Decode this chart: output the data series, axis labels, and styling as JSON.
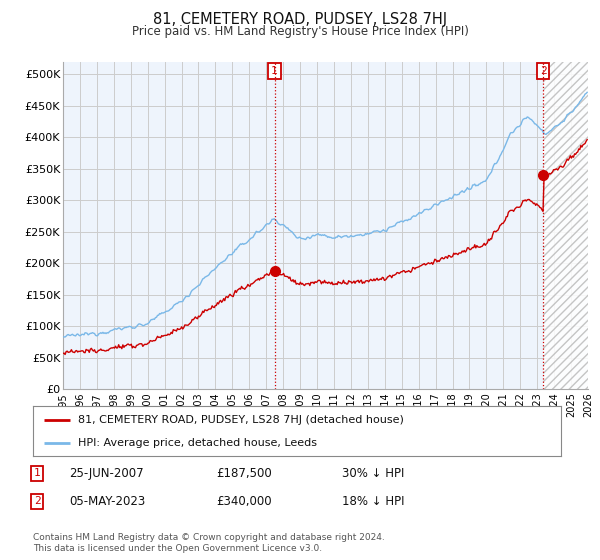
{
  "title": "81, CEMETERY ROAD, PUDSEY, LS28 7HJ",
  "subtitle": "Price paid vs. HM Land Registry's House Price Index (HPI)",
  "hpi_label": "HPI: Average price, detached house, Leeds",
  "property_label": "81, CEMETERY ROAD, PUDSEY, LS28 7HJ (detached house)",
  "hpi_color": "#7ab8e8",
  "property_color": "#cc0000",
  "background_color": "#ffffff",
  "grid_color": "#cccccc",
  "fill_color": "#ddeeff",
  "ylim": [
    0,
    520000
  ],
  "yticks": [
    0,
    50000,
    100000,
    150000,
    200000,
    250000,
    300000,
    350000,
    400000,
    450000,
    500000
  ],
  "ytick_labels": [
    "£0",
    "£50K",
    "£100K",
    "£150K",
    "£200K",
    "£250K",
    "£300K",
    "£350K",
    "£400K",
    "£450K",
    "£500K"
  ],
  "transaction1": {
    "date": "25-JUN-2007",
    "price": "£187,500",
    "hpi_diff": "30% ↓ HPI"
  },
  "transaction2": {
    "date": "05-MAY-2023",
    "price": "£340,000",
    "hpi_diff": "18% ↓ HPI"
  },
  "marker1_x": 2007.49,
  "marker1_y": 187500,
  "marker2_x": 2023.35,
  "marker2_y": 340000,
  "vline1_x": 2007.49,
  "vline2_x": 2023.35,
  "footnote": "Contains HM Land Registry data © Crown copyright and database right 2024.\nThis data is licensed under the Open Government Licence v3.0.",
  "xmin": 1995,
  "xmax": 2026
}
